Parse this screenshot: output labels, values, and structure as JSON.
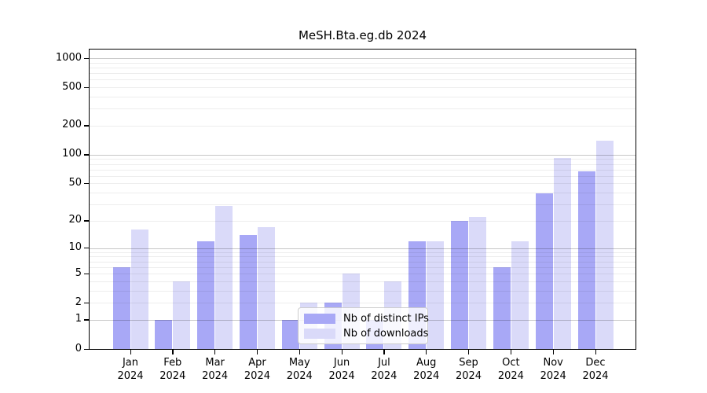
{
  "title": "MeSH.Bta.eg.db 2024",
  "legend": {
    "items": [
      {
        "label": "Nb of distinct IPs",
        "color": "#a8a8f6"
      },
      {
        "label": "Nb of downloads",
        "color": "#dadaf9"
      }
    ]
  },
  "chart_data": {
    "type": "bar",
    "title": "MeSH.Bta.eg.db 2024",
    "categories": [
      "Jan",
      "Feb",
      "Mar",
      "Apr",
      "May",
      "Jun",
      "Jul",
      "Aug",
      "Sep",
      "Oct",
      "Nov",
      "Dec"
    ],
    "category_year": "2024",
    "series": [
      {
        "name": "Nb of distinct IPs",
        "color": "#a8a8f6",
        "values": [
          6,
          1,
          12,
          14,
          1,
          2,
          1,
          12,
          20,
          6,
          39,
          67
        ]
      },
      {
        "name": "Nb of downloads",
        "color": "#dadaf9",
        "values": [
          16,
          4,
          29,
          17,
          2,
          5,
          4,
          12,
          22,
          12,
          92,
          140
        ]
      }
    ],
    "xlabel": "",
    "ylabel": "",
    "y_ticks": [
      0,
      1,
      2,
      5,
      10,
      20,
      50,
      100,
      200,
      500,
      1000
    ],
    "y_scale": "log10(1+y)",
    "ylim": [
      0,
      1100
    ],
    "grid": "horizontal, minor log lines light gray, decade lines darker",
    "legend_position": "inside bottom-center",
    "decade_grid_values": [
      1,
      10,
      100,
      1000
    ],
    "minor_grid_mantissas": [
      2,
      3,
      4,
      5,
      6,
      7,
      8,
      9
    ],
    "colors": {
      "axis": "#000000",
      "major_grid": "rgba(0,0,0,0.22)",
      "minor_grid": "rgba(0,0,0,0.07)",
      "background": "#ffffff"
    }
  }
}
